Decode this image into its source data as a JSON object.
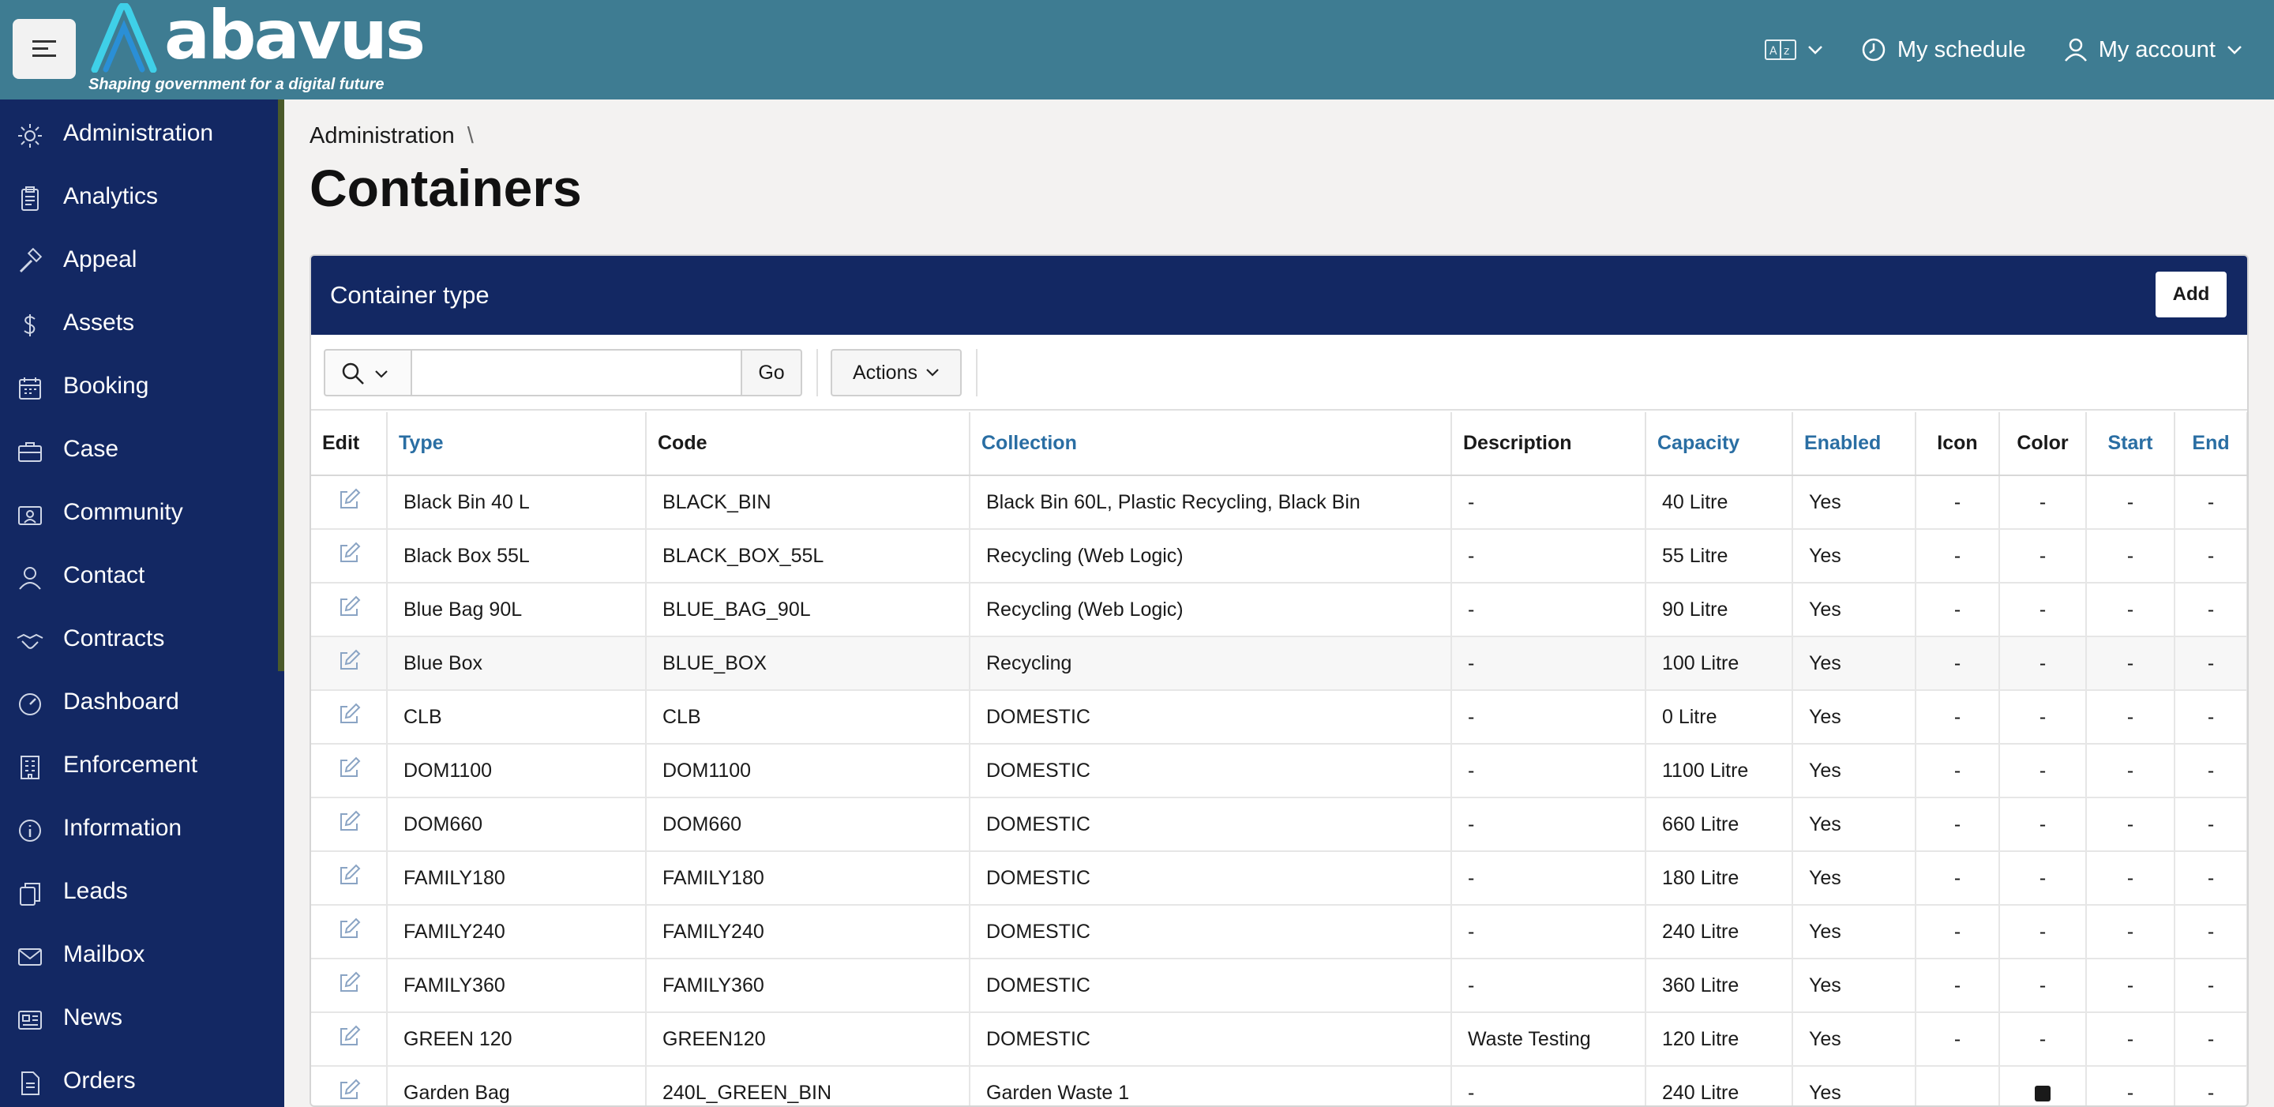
{
  "header": {
    "logo_text": "abavus",
    "tagline": "Shaping government for a digital future",
    "language_icon": "translate-icon",
    "my_schedule": "My schedule",
    "my_account": "My account"
  },
  "sidebar": {
    "items": [
      {
        "label": "Administration",
        "icon": "gear-icon"
      },
      {
        "label": "Analytics",
        "icon": "clipboard-icon"
      },
      {
        "label": "Appeal",
        "icon": "gavel-icon"
      },
      {
        "label": "Assets",
        "icon": "dollar-icon"
      },
      {
        "label": "Booking",
        "icon": "calendar-icon"
      },
      {
        "label": "Case",
        "icon": "briefcase-icon"
      },
      {
        "label": "Community",
        "icon": "community-icon"
      },
      {
        "label": "Contact",
        "icon": "person-icon"
      },
      {
        "label": "Contracts",
        "icon": "handshake-icon"
      },
      {
        "label": "Dashboard",
        "icon": "gauge-icon"
      },
      {
        "label": "Enforcement",
        "icon": "building-icon"
      },
      {
        "label": "Information",
        "icon": "info-icon"
      },
      {
        "label": "Leads",
        "icon": "copy-icon"
      },
      {
        "label": "Mailbox",
        "icon": "mail-icon"
      },
      {
        "label": "News",
        "icon": "newspaper-icon"
      },
      {
        "label": "Orders",
        "icon": "document-icon"
      }
    ]
  },
  "breadcrumb": {
    "parent": "Administration",
    "separator": "\\"
  },
  "page_title": "Containers",
  "panel": {
    "title": "Container type",
    "add_label": "Add",
    "search_placeholder": "",
    "go_label": "Go",
    "actions_label": "Actions"
  },
  "table": {
    "columns": [
      {
        "label": "Edit",
        "link": false
      },
      {
        "label": "Type",
        "link": true
      },
      {
        "label": "Code",
        "link": false
      },
      {
        "label": "Collection",
        "link": true
      },
      {
        "label": "Description",
        "link": false
      },
      {
        "label": "Capacity",
        "link": true
      },
      {
        "label": "Enabled",
        "link": true
      },
      {
        "label": "Icon",
        "link": false
      },
      {
        "label": "Color",
        "link": false
      },
      {
        "label": "Start",
        "link": true
      },
      {
        "label": "End",
        "link": true
      }
    ],
    "rows": [
      {
        "type": "Black Bin 40 L",
        "code": "BLACK_BIN",
        "collection": "Black Bin 60L, Plastic Recycling, Black Bin",
        "description": "-",
        "capacity": "40 Litre",
        "enabled": "Yes",
        "icon": "-",
        "color": "-",
        "start": "-",
        "end": "-"
      },
      {
        "type": "Black Box 55L",
        "code": "BLACK_BOX_55L",
        "collection": "Recycling (Web Logic)",
        "description": "-",
        "capacity": "55 Litre",
        "enabled": "Yes",
        "icon": "-",
        "color": "-",
        "start": "-",
        "end": "-"
      },
      {
        "type": "Blue Bag 90L",
        "code": "BLUE_BAG_90L",
        "collection": "Recycling (Web Logic)",
        "description": "-",
        "capacity": "90 Litre",
        "enabled": "Yes",
        "icon": "-",
        "color": "-",
        "start": "-",
        "end": "-"
      },
      {
        "type": "Blue Box",
        "code": "BLUE_BOX",
        "collection": "Recycling",
        "description": "-",
        "capacity": "100 Litre",
        "enabled": "Yes",
        "icon": "-",
        "color": "-",
        "start": "-",
        "end": "-"
      },
      {
        "type": "CLB",
        "code": "CLB",
        "collection": "DOMESTIC",
        "description": "-",
        "capacity": "0 Litre",
        "enabled": "Yes",
        "icon": "-",
        "color": "-",
        "start": "-",
        "end": "-"
      },
      {
        "type": "DOM1100",
        "code": "DOM1100",
        "collection": "DOMESTIC",
        "description": "-",
        "capacity": "1100 Litre",
        "enabled": "Yes",
        "icon": "-",
        "color": "-",
        "start": "-",
        "end": "-"
      },
      {
        "type": "DOM660",
        "code": "DOM660",
        "collection": "DOMESTIC",
        "description": "-",
        "capacity": "660 Litre",
        "enabled": "Yes",
        "icon": "-",
        "color": "-",
        "start": "-",
        "end": "-"
      },
      {
        "type": "FAMILY180",
        "code": "FAMILY180",
        "collection": "DOMESTIC",
        "description": "-",
        "capacity": "180 Litre",
        "enabled": "Yes",
        "icon": "-",
        "color": "-",
        "start": "-",
        "end": "-"
      },
      {
        "type": "FAMILY240",
        "code": "FAMILY240",
        "collection": "DOMESTIC",
        "description": "-",
        "capacity": "240 Litre",
        "enabled": "Yes",
        "icon": "-",
        "color": "-",
        "start": "-",
        "end": "-"
      },
      {
        "type": "FAMILY360",
        "code": "FAMILY360",
        "collection": "DOMESTIC",
        "description": "-",
        "capacity": "360 Litre",
        "enabled": "Yes",
        "icon": "-",
        "color": "-",
        "start": "-",
        "end": "-"
      },
      {
        "type": "GREEN 120",
        "code": "GREEN120",
        "collection": "DOMESTIC",
        "description": "Waste Testing",
        "capacity": "120 Litre",
        "enabled": "Yes",
        "icon": "-",
        "color": "-",
        "start": "-",
        "end": "-"
      },
      {
        "type": "Garden Bag",
        "code": "240L_GREEN_BIN",
        "collection": "Garden Waste 1",
        "description": "-",
        "capacity": "240 Litre",
        "enabled": "Yes",
        "icon": "",
        "color": "#1a1a1a",
        "start": "-",
        "end": "-"
      }
    ]
  },
  "colors": {
    "header_bg": "#3e7c92",
    "sidebar_bg": "#132863",
    "panel_header_bg": "#132863",
    "link": "#2a6ea3"
  }
}
